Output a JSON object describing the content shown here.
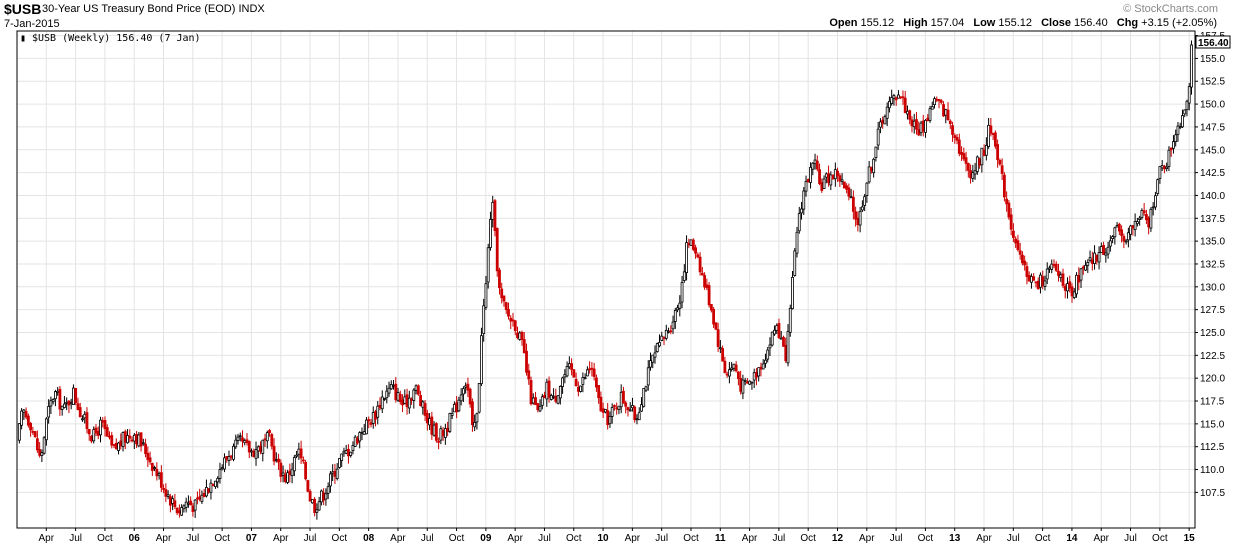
{
  "header": {
    "symbol": "$USB",
    "description": "30-Year US Treasury Bond Price (EOD)  INDX",
    "date": "7-Jan-2015",
    "copyright": "© StockCharts.com",
    "open_label": "Open",
    "open": "155.12",
    "high_label": "High",
    "high": "157.04",
    "low_label": "Low",
    "low": "155.12",
    "close_label": "Close",
    "close": "156.40",
    "chg_label": "Chg",
    "chg": "+3.15 (+2.05%)"
  },
  "legend": {
    "text": "$USB (Weekly) 156.40 (7 Jan)",
    "last_value": "156.40"
  },
  "colors": {
    "up": "#000000",
    "down": "#cc0000",
    "grid": "#e4e4e4",
    "axis": "#000000"
  },
  "chart_data": {
    "type": "candlestick",
    "frequency": "weekly",
    "y_ticks": [
      "157.5",
      "155.0",
      "152.5",
      "150.0",
      "147.5",
      "145.0",
      "142.5",
      "140.0",
      "137.5",
      "135.0",
      "132.5",
      "130.0",
      "127.5",
      "125.0",
      "122.5",
      "120.0",
      "117.5",
      "115.0",
      "112.5",
      "110.0",
      "107.5"
    ],
    "ylim": [
      103.6,
      158.0
    ],
    "x_ticks": [
      "Apr",
      "Jul",
      "Oct",
      "06",
      "Apr",
      "Jul",
      "Oct",
      "07",
      "Apr",
      "Jul",
      "Oct",
      "08",
      "Apr",
      "Jul",
      "Oct",
      "09",
      "Apr",
      "Jul",
      "Oct",
      "10",
      "Apr",
      "Jul",
      "Oct",
      "11",
      "Apr",
      "Jul",
      "Oct",
      "12",
      "Apr",
      "Jul",
      "Oct",
      "13",
      "Apr",
      "Jul",
      "Oct",
      "14",
      "Apr",
      "Jul",
      "Oct",
      "15"
    ],
    "x_range": [
      2005.0,
      2015.05
    ],
    "anchors": [
      [
        2005.0,
        113.0
      ],
      [
        2005.05,
        116.5
      ],
      [
        2005.12,
        115.0
      ],
      [
        2005.2,
        111.0
      ],
      [
        2005.26,
        116.0
      ],
      [
        2005.32,
        118.5
      ],
      [
        2005.4,
        116.5
      ],
      [
        2005.48,
        118.5
      ],
      [
        2005.55,
        116.0
      ],
      [
        2005.65,
        113.5
      ],
      [
        2005.72,
        115.0
      ],
      [
        2005.82,
        112.0
      ],
      [
        2005.92,
        113.5
      ],
      [
        2006.0,
        114.0
      ],
      [
        2006.1,
        112.0
      ],
      [
        2006.2,
        109.5
      ],
      [
        2006.3,
        107.0
      ],
      [
        2006.38,
        105.5
      ],
      [
        2006.45,
        106.5
      ],
      [
        2006.52,
        106.0
      ],
      [
        2006.6,
        107.5
      ],
      [
        2006.7,
        109.5
      ],
      [
        2006.8,
        111.5
      ],
      [
        2006.9,
        113.0
      ],
      [
        2007.0,
        112.0
      ],
      [
        2007.08,
        112.5
      ],
      [
        2007.15,
        113.5
      ],
      [
        2007.22,
        110.5
      ],
      [
        2007.3,
        109.0
      ],
      [
        2007.4,
        112.0
      ],
      [
        2007.45,
        110.0
      ],
      [
        2007.5,
        107.0
      ],
      [
        2007.54,
        106.0
      ],
      [
        2007.62,
        107.5
      ],
      [
        2007.75,
        111.0
      ],
      [
        2007.85,
        112.5
      ],
      [
        2007.95,
        114.5
      ],
      [
        2008.05,
        116.0
      ],
      [
        2008.12,
        118.0
      ],
      [
        2008.2,
        119.0
      ],
      [
        2008.3,
        117.0
      ],
      [
        2008.4,
        119.0
      ],
      [
        2008.45,
        117.0
      ],
      [
        2008.52,
        115.0
      ],
      [
        2008.6,
        113.5
      ],
      [
        2008.68,
        115.0
      ],
      [
        2008.75,
        117.0
      ],
      [
        2008.82,
        120.0
      ],
      [
        2008.86,
        118.0
      ],
      [
        2008.88,
        114.0
      ],
      [
        2008.93,
        116.0
      ],
      [
        2008.96,
        125.0
      ],
      [
        2009.0,
        130.0
      ],
      [
        2009.02,
        134.0
      ],
      [
        2009.05,
        140.0
      ],
      [
        2009.08,
        135.0
      ],
      [
        2009.12,
        129.0
      ],
      [
        2009.18,
        127.0
      ],
      [
        2009.25,
        126.0
      ],
      [
        2009.32,
        123.0
      ],
      [
        2009.38,
        118.0
      ],
      [
        2009.45,
        116.0
      ],
      [
        2009.52,
        119.0
      ],
      [
        2009.58,
        117.5
      ],
      [
        2009.65,
        120.0
      ],
      [
        2009.72,
        121.0
      ],
      [
        2009.8,
        119.0
      ],
      [
        2009.9,
        121.5
      ],
      [
        2009.95,
        118.0
      ],
      [
        2010.0,
        116.0
      ],
      [
        2010.05,
        115.5
      ],
      [
        2010.15,
        118.0
      ],
      [
        2010.22,
        117.0
      ],
      [
        2010.28,
        115.5
      ],
      [
        2010.35,
        119.0
      ],
      [
        2010.42,
        122.0
      ],
      [
        2010.5,
        124.0
      ],
      [
        2010.58,
        126.0
      ],
      [
        2010.65,
        128.5
      ],
      [
        2010.7,
        133.0
      ],
      [
        2010.72,
        135.0
      ],
      [
        2010.8,
        134.0
      ],
      [
        2010.85,
        131.0
      ],
      [
        2010.92,
        128.0
      ],
      [
        2011.0,
        123.0
      ],
      [
        2011.05,
        120.5
      ],
      [
        2011.12,
        121.5
      ],
      [
        2011.18,
        119.0
      ],
      [
        2011.25,
        119.5
      ],
      [
        2011.32,
        121.0
      ],
      [
        2011.4,
        123.0
      ],
      [
        2011.48,
        126.0
      ],
      [
        2011.52,
        124.0
      ],
      [
        2011.55,
        122.0
      ],
      [
        2011.58,
        124.5
      ],
      [
        2011.62,
        131.0
      ],
      [
        2011.66,
        137.0
      ],
      [
        2011.72,
        141.0
      ],
      [
        2011.8,
        143.5
      ],
      [
        2011.85,
        141.0
      ],
      [
        2011.92,
        142.0
      ],
      [
        2012.0,
        142.5
      ],
      [
        2012.05,
        141.0
      ],
      [
        2012.12,
        139.0
      ],
      [
        2012.18,
        137.0
      ],
      [
        2012.22,
        140.0
      ],
      [
        2012.3,
        144.0
      ],
      [
        2012.38,
        148.5
      ],
      [
        2012.45,
        150.0
      ],
      [
        2012.52,
        151.5
      ],
      [
        2012.6,
        149.0
      ],
      [
        2012.68,
        147.0
      ],
      [
        2012.75,
        148.0
      ],
      [
        2012.82,
        150.5
      ],
      [
        2012.9,
        149.5
      ],
      [
        2013.0,
        147.0
      ],
      [
        2013.08,
        143.5
      ],
      [
        2013.15,
        142.5
      ],
      [
        2013.25,
        145.0
      ],
      [
        2013.3,
        147.5
      ],
      [
        2013.35,
        146.0
      ],
      [
        2013.4,
        142.0
      ],
      [
        2013.48,
        137.0
      ],
      [
        2013.55,
        133.0
      ],
      [
        2013.62,
        131.5
      ],
      [
        2013.7,
        130.0
      ],
      [
        2013.78,
        131.5
      ],
      [
        2013.85,
        132.0
      ],
      [
        2013.92,
        131.0
      ],
      [
        2014.0,
        128.5
      ],
      [
        2014.05,
        131.0
      ],
      [
        2014.12,
        132.0
      ],
      [
        2014.22,
        133.5
      ],
      [
        2014.3,
        134.5
      ],
      [
        2014.38,
        136.0
      ],
      [
        2014.45,
        135.5
      ],
      [
        2014.52,
        136.5
      ],
      [
        2014.6,
        138.0
      ],
      [
        2014.65,
        136.5
      ],
      [
        2014.7,
        140.0
      ],
      [
        2014.75,
        142.5
      ],
      [
        2014.82,
        144.0
      ],
      [
        2014.88,
        147.0
      ],
      [
        2014.93,
        148.5
      ],
      [
        2014.97,
        150.0
      ],
      [
        2015.0,
        152.5
      ],
      [
        2015.02,
        156.4
      ]
    ]
  }
}
